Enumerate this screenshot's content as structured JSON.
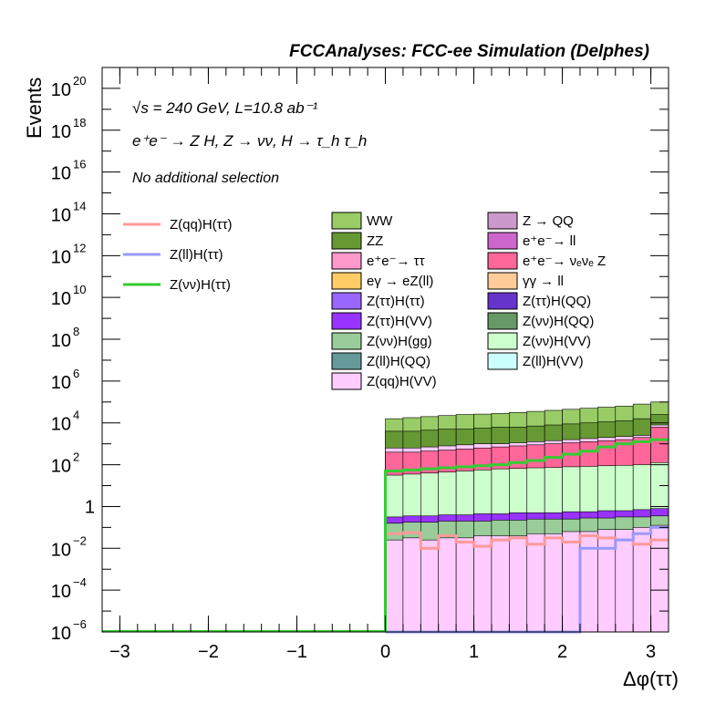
{
  "chart_data": {
    "type": "stacked-histogram",
    "title": "FCCAnalyses: FCC-ee Simulation (Delphes)",
    "annotations": {
      "energy_lumi": "√s = 240 GeV, L=10.8 ab⁻¹",
      "process": "e⁺e⁻ → Z H, Z → νν, H → τ_h τ_h",
      "selection": "No additional selection"
    },
    "xlabel": "Δφ(ττ)",
    "ylabel": "Events",
    "xlim": [
      -3.2,
      3.2
    ],
    "ylim_exponent": [
      -6,
      21
    ],
    "yscale": "log",
    "x_ticks": [
      "−3",
      "−2",
      "−1",
      "0",
      "1",
      "2",
      "3"
    ],
    "x_tick_values": [
      -3,
      -2,
      -1,
      0,
      1,
      2,
      3
    ],
    "y_ticks": [
      {
        "base": "10",
        "exp": "−6",
        "value": -6
      },
      {
        "base": "10",
        "exp": "−4",
        "value": -4
      },
      {
        "base": "10",
        "exp": "−2",
        "value": -2
      },
      {
        "base": "1",
        "exp": "",
        "value": 0
      },
      {
        "base": "10",
        "exp": "2",
        "value": 2
      },
      {
        "base": "10",
        "exp": "4",
        "value": 4
      },
      {
        "base": "10",
        "exp": "6",
        "value": 6
      },
      {
        "base": "10",
        "exp": "8",
        "value": 8
      },
      {
        "base": "10",
        "exp": "10",
        "value": 10
      },
      {
        "base": "10",
        "exp": "12",
        "value": 12
      },
      {
        "base": "10",
        "exp": "14",
        "value": 14
      },
      {
        "base": "10",
        "exp": "16",
        "value": 16
      },
      {
        "base": "10",
        "exp": "18",
        "value": 18
      },
      {
        "base": "10",
        "exp": "20",
        "value": 20
      }
    ],
    "bins_x_start": 0.0,
    "bin_width": 0.2,
    "stack_log10_tops": [
      {
        "name": "WW",
        "color": "#99cc66",
        "log10": [
          4.2,
          4.25,
          4.3,
          4.35,
          4.4,
          4.42,
          4.45,
          4.5,
          4.55,
          4.6,
          4.65,
          4.7,
          4.75,
          4.8,
          4.9,
          5.0
        ]
      },
      {
        "name": "ZZ",
        "color": "#669933",
        "log10": [
          3.6,
          3.6,
          3.65,
          3.7,
          3.7,
          3.75,
          3.8,
          3.8,
          3.85,
          3.9,
          3.95,
          4.0,
          4.05,
          4.1,
          4.2,
          4.4
        ]
      },
      {
        "name": "Z(νν)H(ττ)",
        "color": "#ffccff",
        "log10": [
          2.8,
          2.8,
          2.85,
          2.9,
          2.95,
          3.0,
          3.0,
          3.05,
          3.1,
          3.15,
          3.2,
          3.25,
          3.3,
          3.35,
          3.4,
          3.9
        ]
      },
      {
        "name": "e⁺e⁻ → νₑνₑ Z",
        "color": "#ff6699",
        "log10": [
          2.6,
          2.6,
          2.65,
          2.7,
          2.75,
          2.8,
          2.85,
          2.9,
          2.95,
          3.0,
          3.05,
          3.1,
          3.15,
          3.2,
          3.3,
          3.8
        ]
      },
      {
        "name": "Z(νν)H(VV)",
        "color": "#ccffcc",
        "log10": [
          1.5,
          1.55,
          1.6,
          1.65,
          1.7,
          1.75,
          1.8,
          1.82,
          1.85,
          1.87,
          1.9,
          1.92,
          1.95,
          1.97,
          2.0,
          2.1
        ]
      },
      {
        "name": "Z(ττ)H(VV)",
        "color": "#9933ff",
        "log10": [
          -0.5,
          -0.45,
          -0.45,
          -0.4,
          -0.4,
          -0.35,
          -0.35,
          -0.3,
          -0.3,
          -0.3,
          -0.25,
          -0.25,
          -0.2,
          -0.2,
          -0.15,
          -0.1
        ]
      },
      {
        "name": "Z(νν)H(gg)",
        "color": "#99cc99",
        "log10": [
          -0.8,
          -0.75,
          -0.75,
          -0.7,
          -0.7,
          -0.7,
          -0.65,
          -0.65,
          -0.6,
          -0.6,
          -0.6,
          -0.55,
          -0.55,
          -0.5,
          -0.5,
          -0.45
        ]
      },
      {
        "name": "Z(qq)H(VV)",
        "color": "#ffccff",
        "log10": [
          -1.6,
          -1.5,
          -1.6,
          -1.5,
          -1.5,
          -1.4,
          -1.4,
          -1.4,
          -1.3,
          -1.3,
          -1.2,
          -1.2,
          -1.1,
          -1.1,
          -1.0,
          -0.9
        ]
      }
    ],
    "series": [
      {
        "name": "Z(qq)H(ττ)",
        "color": "#ff9999",
        "log10": [
          -1.3,
          -1.25,
          -2.0,
          -1.4,
          -1.7,
          -1.9,
          -1.6,
          -1.5,
          -1.8,
          -1.5,
          -1.7,
          -1.4,
          -1.5,
          -1.6,
          -1.8,
          -1.6
        ]
      },
      {
        "name": "Z(ll)H(ττ)",
        "color": "#9999ff",
        "log10": [
          -6,
          -6,
          -6,
          -6,
          -6,
          -6,
          -6,
          -6,
          -6,
          -6,
          -6,
          -2.0,
          -2.0,
          -1.6,
          -1.3,
          -1.0
        ]
      },
      {
        "name": "Z(νν)H(ττ)",
        "color": "#33cc33",
        "log10": [
          1.7,
          1.75,
          1.8,
          1.85,
          1.9,
          1.95,
          2.0,
          2.1,
          2.2,
          2.35,
          2.5,
          2.65,
          2.85,
          3.0,
          3.1,
          3.2
        ]
      }
    ],
    "legend_left": [
      {
        "label": "Z(qq)H(ττ)",
        "color": "#ff9999",
        "kind": "line"
      },
      {
        "label": "Z(ll)H(ττ)",
        "color": "#9999ff",
        "kind": "line"
      },
      {
        "label": "Z(νν)H(ττ)",
        "color": "#33cc33",
        "kind": "line"
      }
    ],
    "legend_boxes": [
      {
        "label": "WW",
        "color": "#99cc66"
      },
      {
        "label": "Z → QQ",
        "color": "#cc99cc"
      },
      {
        "label": "ZZ",
        "color": "#669933"
      },
      {
        "label": "e⁺e⁻→ ll",
        "color": "#cc66cc"
      },
      {
        "label": "e⁺e⁻→ ττ",
        "color": "#ff99cc"
      },
      {
        "label": "e⁺e⁻→ νₑνₑ Z",
        "color": "#ff6699"
      },
      {
        "label": "eγ → eZ(ll)",
        "color": "#ffcc66"
      },
      {
        "label": "γγ → ll",
        "color": "#ffcc99"
      },
      {
        "label": "Z(ττ)H(ττ)",
        "color": "#9966ff"
      },
      {
        "label": "Z(ττ)H(QQ)",
        "color": "#6633cc"
      },
      {
        "label": "Z(ττ)H(VV)",
        "color": "#9933ff"
      },
      {
        "label": "Z(νν)H(QQ)",
        "color": "#669966"
      },
      {
        "label": "Z(νν)H(gg)",
        "color": "#99cc99"
      },
      {
        "label": "Z(νν)H(VV)",
        "color": "#ccffcc"
      },
      {
        "label": "Z(ll)H(QQ)",
        "color": "#669999"
      },
      {
        "label": "Z(ll)H(VV)",
        "color": "#ccffff"
      },
      {
        "label": "Z(qq)H(VV)",
        "color": "#ffccff"
      }
    ]
  }
}
